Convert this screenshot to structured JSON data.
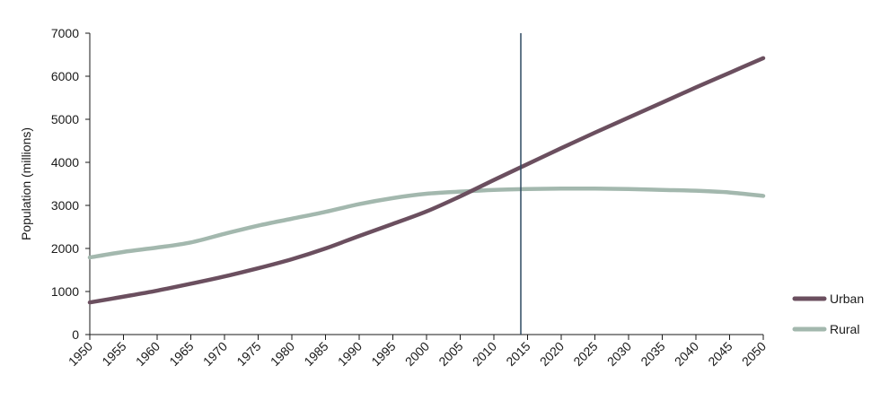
{
  "chart_data": {
    "type": "line",
    "title": "",
    "xlabel": "",
    "ylabel": "Population (millions)",
    "x": [
      1950,
      1955,
      1960,
      1965,
      1970,
      1975,
      1980,
      1985,
      1990,
      1995,
      2000,
      2005,
      2010,
      2015,
      2020,
      2025,
      2030,
      2035,
      2040,
      2045,
      2050
    ],
    "x_tick_labels": [
      "1950",
      "1955",
      "1960",
      "1965",
      "1970",
      "1975",
      "1980",
      "1985",
      "1990",
      "1995",
      "2000",
      "2005",
      "2010",
      "2015",
      "2020",
      "2025",
      "2030",
      "2035",
      "2040",
      "2045",
      "2050"
    ],
    "xlim": [
      1950,
      2050
    ],
    "ylim": [
      0,
      7000
    ],
    "y_ticks": [
      0,
      1000,
      2000,
      3000,
      4000,
      5000,
      6000,
      7000
    ],
    "y_tick_labels": [
      "0",
      "1000",
      "2000",
      "3000",
      "4000",
      "5000",
      "6000",
      "7000"
    ],
    "grid": false,
    "legend_position": "right",
    "reference_line_x": 2014,
    "reference_line_color": "#2e4a62",
    "series": [
      {
        "name": "Urban",
        "color": "#6b4f5f",
        "values": [
          746,
          880,
          1020,
          1180,
          1350,
          1540,
          1750,
          2000,
          2290,
          2570,
          2860,
          3210,
          3590,
          3960,
          4330,
          4690,
          5040,
          5390,
          5740,
          6080,
          6420
        ]
      },
      {
        "name": "Rural",
        "color": "#a3b8ae",
        "values": [
          1790,
          1920,
          2020,
          2140,
          2340,
          2530,
          2690,
          2850,
          3030,
          3170,
          3270,
          3320,
          3360,
          3380,
          3390,
          3390,
          3380,
          3360,
          3340,
          3300,
          3220
        ]
      }
    ]
  }
}
